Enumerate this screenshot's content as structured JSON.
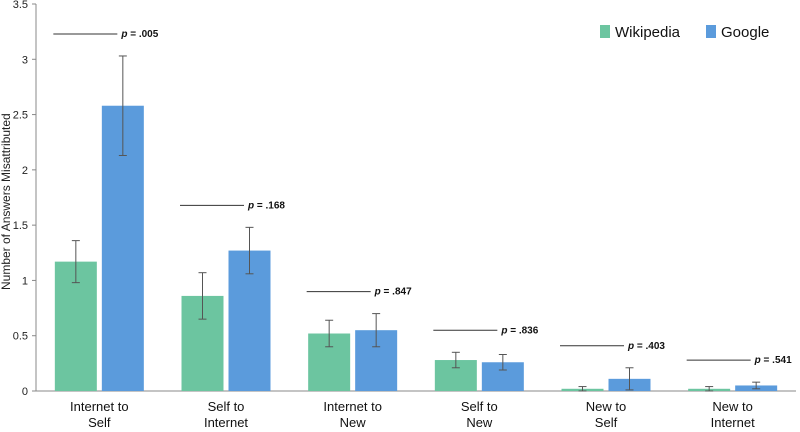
{
  "chart_data": {
    "type": "bar",
    "ylabel": "Number of Answers Misattributed",
    "xlabel": "",
    "ylim": [
      0,
      3.5
    ],
    "yticks": [
      "0",
      "0.5",
      "1",
      "1.5",
      "2",
      "2.5",
      "3",
      "3.5"
    ],
    "categories": [
      [
        "Internet to",
        "Self"
      ],
      [
        "Self to",
        "Internet"
      ],
      [
        "Internet to",
        "New"
      ],
      [
        "Self to",
        "New"
      ],
      [
        "New to",
        "Self"
      ],
      [
        "New to",
        "Internet"
      ]
    ],
    "series": [
      {
        "name": "Wikipedia",
        "color": "#6cc5a0",
        "values": [
          1.17,
          0.86,
          0.52,
          0.28,
          0.02,
          0.02
        ],
        "error": [
          0.19,
          0.21,
          0.12,
          0.07,
          0.02,
          0.02
        ]
      },
      {
        "name": "Google",
        "color": "#5b9bdc",
        "values": [
          2.58,
          1.27,
          0.55,
          0.26,
          0.11,
          0.05
        ],
        "error": [
          0.45,
          0.21,
          0.15,
          0.07,
          0.1,
          0.03
        ]
      }
    ],
    "pvalues": [
      "= .005",
      "= .168",
      "= .847",
      "= .836",
      "= .403",
      "= .541"
    ],
    "p_symbol": "p",
    "grid": false,
    "legend_position": "top-right"
  }
}
